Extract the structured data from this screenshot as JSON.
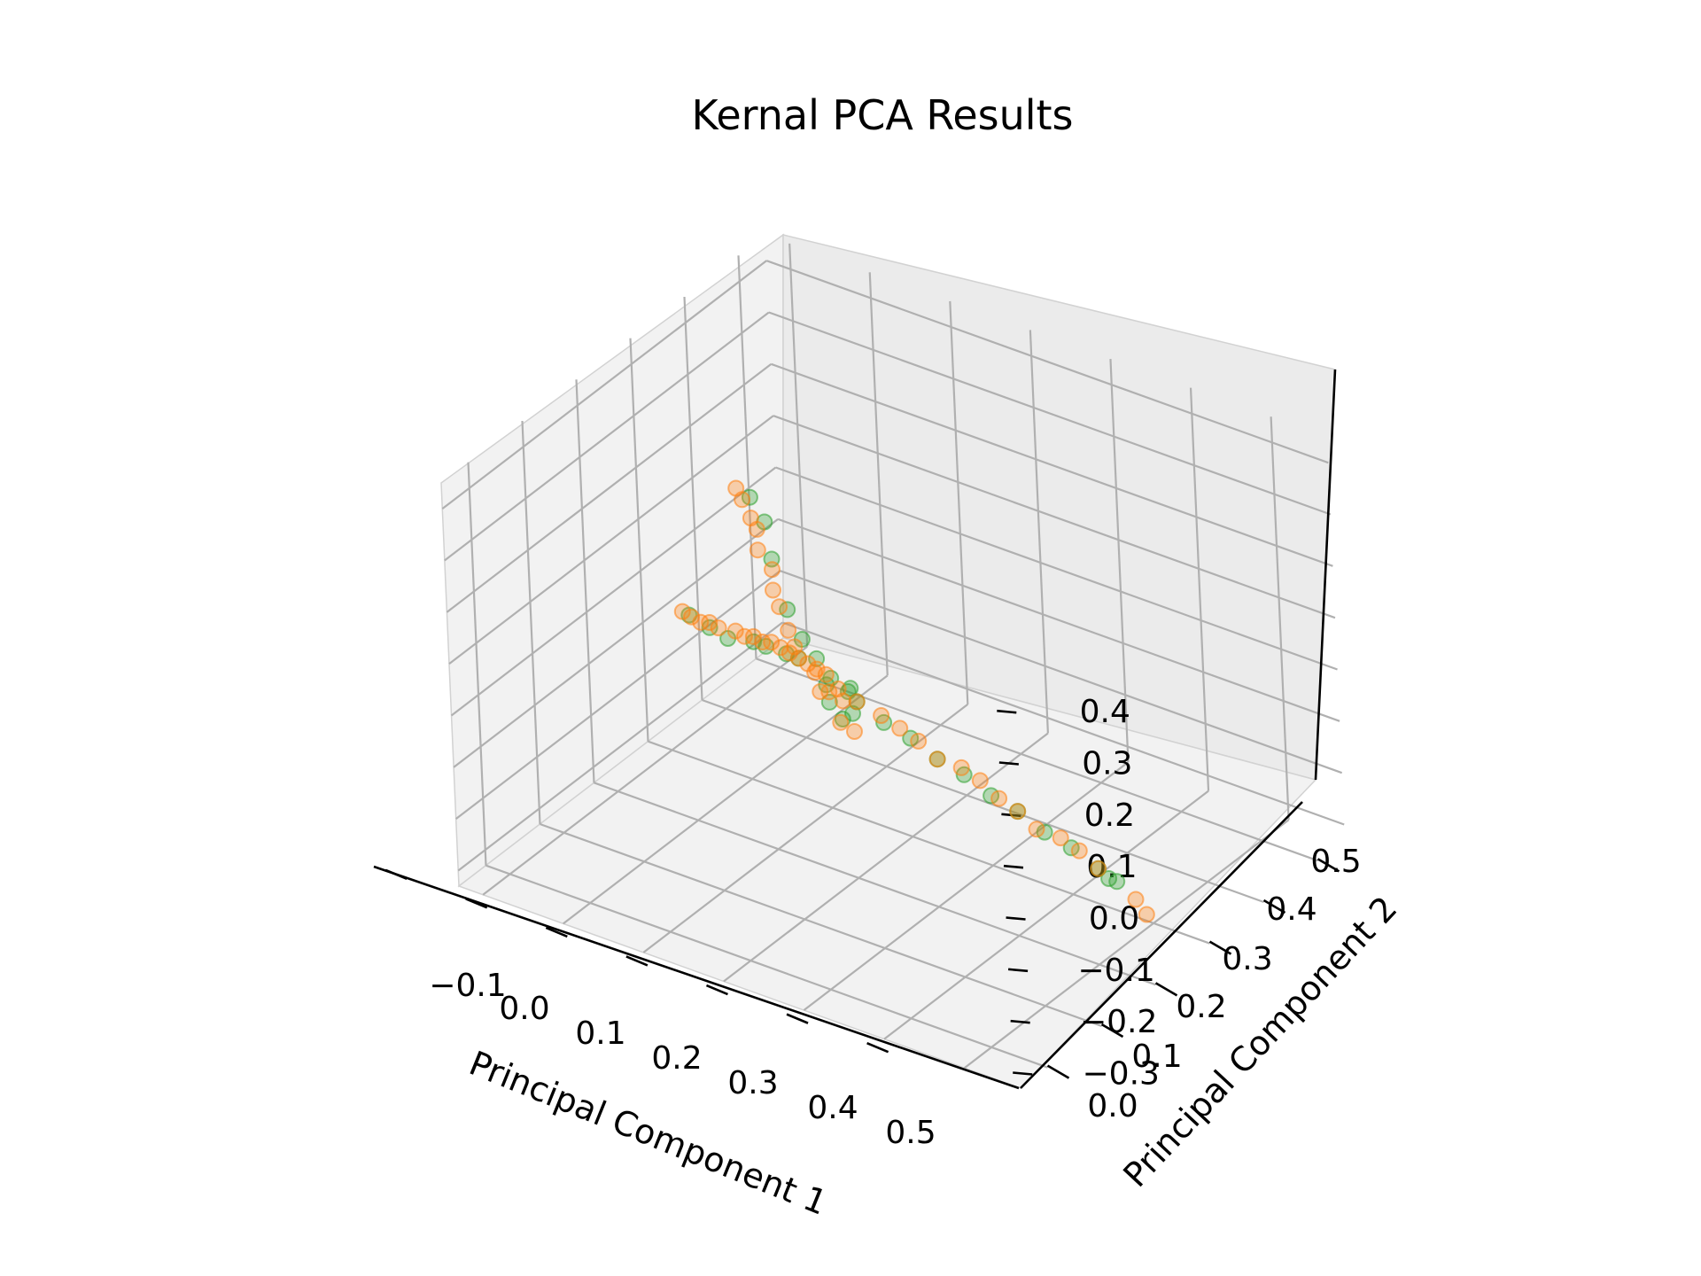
{
  "chart_data": {
    "type": "scatter",
    "projection": "3d",
    "title": "Kernal PCA Results",
    "xlabel": "Principal Component 1",
    "ylabel": "Principal Component 2",
    "zlabel": "",
    "xlim": [
      -0.13,
      0.57
    ],
    "ylim": [
      -0.05,
      0.55
    ],
    "zlim": [
      -0.33,
      0.45
    ],
    "xticks": [
      "−0.1",
      "0.0",
      "0.1",
      "0.2",
      "0.3",
      "0.4",
      "0.5"
    ],
    "yticks": [
      "0.0",
      "0.1",
      "0.2",
      "0.3",
      "0.4",
      "0.5"
    ],
    "zticks": [
      "−0.3",
      "−0.2",
      "−0.1",
      "0.0",
      "0.1",
      "0.2",
      "0.3",
      "0.4"
    ],
    "grid": true,
    "legend": "none",
    "marker": "hollow circle, semi-transparent",
    "series": [
      {
        "color": "#2ca02c",
        "points": [
          [
            0.0,
            0.06,
            -0.26
          ],
          [
            0.01,
            0.07,
            -0.28
          ],
          [
            0.02,
            0.05,
            -0.27
          ],
          [
            0.03,
            0.06,
            -0.25
          ],
          [
            0.02,
            0.08,
            -0.22
          ],
          [
            0.01,
            0.09,
            -0.18
          ],
          [
            0.0,
            0.1,
            -0.14
          ],
          [
            -0.01,
            0.11,
            -0.08
          ],
          [
            -0.02,
            0.12,
            0.02
          ],
          [
            -0.02,
            0.13,
            0.1
          ],
          [
            -0.03,
            0.14,
            0.15
          ],
          [
            0.03,
            0.15,
            -0.12
          ],
          [
            0.05,
            0.2,
            -0.06
          ],
          [
            0.06,
            0.25,
            0.0
          ],
          [
            0.08,
            0.3,
            0.06
          ],
          [
            0.09,
            0.36,
            0.12
          ],
          [
            0.11,
            0.42,
            0.2
          ],
          [
            0.12,
            0.47,
            0.27
          ],
          [
            0.08,
            0.12,
            -0.2
          ],
          [
            0.12,
            0.13,
            -0.21
          ],
          [
            0.16,
            0.14,
            -0.21
          ],
          [
            0.2,
            0.15,
            -0.22
          ],
          [
            0.24,
            0.16,
            -0.22
          ],
          [
            0.28,
            0.17,
            -0.23
          ],
          [
            0.32,
            0.18,
            -0.23
          ],
          [
            0.36,
            0.19,
            -0.24
          ],
          [
            0.4,
            0.2,
            -0.24
          ],
          [
            0.44,
            0.21,
            -0.25
          ],
          [
            0.46,
            0.22,
            -0.25
          ],
          [
            0.47,
            0.22,
            -0.25
          ],
          [
            0.06,
            0.1,
            -0.25
          ],
          [
            0.04,
            0.09,
            -0.28
          ]
        ]
      },
      {
        "color": "#ff7f0e",
        "points": [
          [
            0.0,
            0.06,
            -0.24
          ],
          [
            0.01,
            0.07,
            -0.26
          ],
          [
            0.02,
            0.06,
            -0.28
          ],
          [
            0.0,
            0.08,
            -0.22
          ],
          [
            0.01,
            0.09,
            -0.2
          ],
          [
            0.02,
            0.1,
            -0.23
          ],
          [
            0.03,
            0.08,
            -0.3
          ],
          [
            0.04,
            0.07,
            -0.32
          ],
          [
            -0.01,
            0.1,
            -0.16
          ],
          [
            -0.01,
            0.11,
            -0.12
          ],
          [
            -0.02,
            0.11,
            -0.08
          ],
          [
            -0.02,
            0.12,
            -0.04
          ],
          [
            -0.02,
            0.12,
            0.0
          ],
          [
            -0.03,
            0.13,
            0.04
          ],
          [
            -0.03,
            0.13,
            0.08
          ],
          [
            -0.03,
            0.14,
            0.11
          ],
          [
            -0.04,
            0.14,
            0.14
          ],
          [
            -0.04,
            0.15,
            0.17
          ],
          [
            0.02,
            0.12,
            -0.16
          ],
          [
            0.03,
            0.15,
            -0.12
          ],
          [
            0.04,
            0.18,
            -0.08
          ],
          [
            0.05,
            0.21,
            -0.04
          ],
          [
            0.06,
            0.24,
            0.0
          ],
          [
            0.07,
            0.27,
            0.03
          ],
          [
            0.08,
            0.3,
            0.07
          ],
          [
            0.09,
            0.33,
            0.1
          ],
          [
            0.1,
            0.36,
            0.14
          ],
          [
            0.1,
            0.39,
            0.17
          ],
          [
            0.11,
            0.42,
            0.21
          ],
          [
            0.12,
            0.45,
            0.24
          ],
          [
            0.13,
            0.48,
            0.28
          ],
          [
            0.14,
            0.51,
            0.32
          ],
          [
            0.05,
            0.11,
            -0.2
          ],
          [
            0.08,
            0.12,
            -0.2
          ],
          [
            0.11,
            0.12,
            -0.21
          ],
          [
            0.14,
            0.13,
            -0.21
          ],
          [
            0.17,
            0.14,
            -0.21
          ],
          [
            0.2,
            0.15,
            -0.22
          ],
          [
            0.23,
            0.15,
            -0.22
          ],
          [
            0.26,
            0.16,
            -0.22
          ],
          [
            0.29,
            0.17,
            -0.23
          ],
          [
            0.32,
            0.18,
            -0.23
          ],
          [
            0.35,
            0.19,
            -0.24
          ],
          [
            0.38,
            0.19,
            -0.24
          ],
          [
            0.41,
            0.2,
            -0.24
          ],
          [
            0.44,
            0.21,
            -0.25
          ],
          [
            0.5,
            0.23,
            -0.26
          ],
          [
            0.52,
            0.24,
            -0.27
          ]
        ]
      }
    ]
  }
}
